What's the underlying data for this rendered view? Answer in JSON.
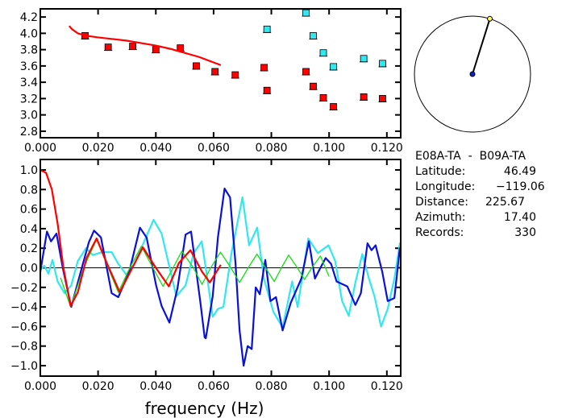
{
  "colors": {
    "blue": "#0a10dc",
    "cyan": "#30e8f0",
    "red": "#ff0000",
    "green": "#10e010",
    "station": "#ffff40"
  },
  "chart_data": [
    {
      "type": "scatter",
      "title": "",
      "xlabel": "",
      "ylabel": "",
      "xlim": [
        0,
        0.1248
      ],
      "ylim": [
        2.72,
        4.3
      ],
      "xticks": [
        "0.000",
        "0.020",
        "0.040",
        "0.060",
        "0.080",
        "0.100",
        "0.120"
      ],
      "yticks": [
        "2.8",
        "3.0",
        "3.2",
        "3.4",
        "3.6",
        "3.8",
        "4.0",
        "4.2"
      ],
      "series": [
        {
          "name": "red-points",
          "color": "red",
          "points": [
            [
              0.0155,
              3.97
            ],
            [
              0.0235,
              3.83
            ],
            [
              0.032,
              3.84
            ],
            [
              0.04,
              3.8
            ],
            [
              0.0485,
              3.82
            ],
            [
              0.054,
              3.6
            ],
            [
              0.0605,
              3.53
            ],
            [
              0.0675,
              3.49
            ],
            [
              0.0775,
              3.58
            ],
            [
              0.0785,
              3.3
            ],
            [
              0.092,
              3.53
            ],
            [
              0.0945,
              3.35
            ],
            [
              0.098,
              3.21
            ],
            [
              0.1015,
              3.1
            ],
            [
              0.112,
              3.22
            ],
            [
              0.1185,
              3.2
            ]
          ]
        },
        {
          "name": "cyan-points",
          "color": "cyan",
          "points": [
            [
              0.0785,
              4.05
            ],
            [
              0.092,
              4.25
            ],
            [
              0.0945,
              3.97
            ],
            [
              0.098,
              3.76
            ],
            [
              0.1015,
              3.59
            ],
            [
              0.112,
              3.69
            ],
            [
              0.1185,
              3.63
            ]
          ]
        },
        {
          "name": "red-curve",
          "color": "red",
          "line": true,
          "points": [
            [
              0.01,
              4.09
            ],
            [
              0.011,
              4.05
            ],
            [
              0.013,
              4.0
            ],
            [
              0.016,
              3.97
            ],
            [
              0.02,
              3.95
            ],
            [
              0.025,
              3.93
            ],
            [
              0.03,
              3.91
            ],
            [
              0.035,
              3.88
            ],
            [
              0.04,
              3.85
            ],
            [
              0.045,
              3.81
            ],
            [
              0.05,
              3.76
            ],
            [
              0.055,
              3.71
            ],
            [
              0.0625,
              3.61
            ]
          ]
        }
      ]
    },
    {
      "type": "line",
      "title": "",
      "xlabel": "frequency (Hz)",
      "ylabel": "",
      "xlim": [
        0,
        0.1248
      ],
      "ylim": [
        -1.107,
        1.107
      ],
      "xticks": [
        "0.000",
        "0.020",
        "0.040",
        "0.060",
        "0.080",
        "0.100",
        "0.120"
      ],
      "yticks": [
        "-1.0",
        "-0.8",
        "-0.6",
        "-0.4",
        "-0.2",
        "0.0",
        "0.2",
        "0.4",
        "0.6",
        "0.8",
        "1.0"
      ],
      "series": [
        {
          "name": "cyan",
          "color": "cyan",
          "points": [
            [
              0,
              -0.02
            ],
            [
              0.0014,
              0.02
            ],
            [
              0.0028,
              -0.06
            ],
            [
              0.0042,
              0.08
            ],
            [
              0.006,
              -0.14
            ],
            [
              0.0084,
              -0.26
            ],
            [
              0.0107,
              -0.18
            ],
            [
              0.013,
              0.07
            ],
            [
              0.0158,
              0.2
            ],
            [
              0.0182,
              0.13
            ],
            [
              0.0214,
              0.16
            ],
            [
              0.0247,
              0.16
            ],
            [
              0.027,
              0.04
            ],
            [
              0.0298,
              -0.07
            ],
            [
              0.0326,
              0.04
            ],
            [
              0.0354,
              0.23
            ],
            [
              0.0392,
              0.49
            ],
            [
              0.042,
              0.35
            ],
            [
              0.0447,
              0.01
            ],
            [
              0.0471,
              -0.29
            ],
            [
              0.0503,
              -0.18
            ],
            [
              0.0531,
              0.15
            ],
            [
              0.0559,
              0.27
            ],
            [
              0.0578,
              -0.1
            ],
            [
              0.0597,
              -0.5
            ],
            [
              0.0615,
              -0.42
            ],
            [
              0.0634,
              -0.4
            ],
            [
              0.0662,
              0.15
            ],
            [
              0.07,
              0.72
            ],
            [
              0.0723,
              0.23
            ],
            [
              0.0751,
              0.41
            ],
            [
              0.0774,
              -0.11
            ],
            [
              0.0807,
              -0.45
            ],
            [
              0.0839,
              -0.61
            ],
            [
              0.0872,
              -0.14
            ],
            [
              0.0891,
              -0.4
            ],
            [
              0.0928,
              0.3
            ],
            [
              0.0961,
              0.15
            ],
            [
              0.0998,
              0.23
            ],
            [
              0.1021,
              0.07
            ],
            [
              0.1045,
              -0.34
            ],
            [
              0.1068,
              -0.49
            ],
            [
              0.1091,
              -0.15
            ],
            [
              0.1115,
              0.14
            ],
            [
              0.1138,
              -0.11
            ],
            [
              0.1157,
              -0.29
            ],
            [
              0.118,
              -0.6
            ],
            [
              0.1203,
              -0.42
            ],
            [
              0.1226,
              -0.11
            ],
            [
              0.1245,
              0.25
            ],
            [
              0.1248,
              0.15
            ]
          ]
        },
        {
          "name": "blue",
          "color": "blue",
          "points": [
            [
              0,
              -0.04
            ],
            [
              0.0023,
              0.37
            ],
            [
              0.0037,
              0.27
            ],
            [
              0.0056,
              0.35
            ],
            [
              0.0079,
              -0.02
            ],
            [
              0.0107,
              -0.4
            ],
            [
              0.014,
              -0.04
            ],
            [
              0.0168,
              0.26
            ],
            [
              0.0186,
              0.38
            ],
            [
              0.021,
              0.31
            ],
            [
              0.0247,
              -0.26
            ],
            [
              0.027,
              -0.3
            ],
            [
              0.0308,
              -0.04
            ],
            [
              0.0345,
              0.41
            ],
            [
              0.0368,
              0.31
            ],
            [
              0.0401,
              -0.18
            ],
            [
              0.042,
              -0.39
            ],
            [
              0.0447,
              -0.56
            ],
            [
              0.0475,
              -0.21
            ],
            [
              0.0503,
              0.34
            ],
            [
              0.0522,
              0.37
            ],
            [
              0.0555,
              -0.37
            ],
            [
              0.0569,
              -0.71
            ],
            [
              0.0573,
              -0.72
            ],
            [
              0.0597,
              -0.29
            ],
            [
              0.0615,
              0.31
            ],
            [
              0.0638,
              0.81
            ],
            [
              0.0657,
              0.72
            ],
            [
              0.0676,
              0.04
            ],
            [
              0.069,
              -0.64
            ],
            [
              0.0704,
              -1.0
            ],
            [
              0.0718,
              -0.8
            ],
            [
              0.0732,
              -0.83
            ],
            [
              0.0746,
              -0.2
            ],
            [
              0.076,
              -0.27
            ],
            [
              0.0779,
              0.08
            ],
            [
              0.0797,
              -0.34
            ],
            [
              0.0816,
              -0.3
            ],
            [
              0.0839,
              -0.64
            ],
            [
              0.0867,
              -0.36
            ],
            [
              0.0904,
              -0.11
            ],
            [
              0.093,
              0.27
            ],
            [
              0.0951,
              -0.11
            ],
            [
              0.097,
              0.0
            ],
            [
              0.0988,
              0.1
            ],
            [
              0.1007,
              0.04
            ],
            [
              0.1026,
              -0.14
            ],
            [
              0.1063,
              -0.19
            ],
            [
              0.1091,
              -0.38
            ],
            [
              0.111,
              -0.26
            ],
            [
              0.1133,
              0.25
            ],
            [
              0.1147,
              0.18
            ],
            [
              0.1161,
              0.23
            ],
            [
              0.1184,
              -0.04
            ],
            [
              0.1203,
              -0.34
            ],
            [
              0.1226,
              -0.31
            ],
            [
              0.1245,
              0.2
            ],
            [
              0.1248,
              0.11
            ]
          ]
        },
        {
          "name": "green",
          "color": "green",
          "points": [
            [
              0.007,
              -0.1
            ],
            [
              0.0105,
              -0.4
            ],
            [
              0.015,
              0.0
            ],
            [
              0.0195,
              0.29
            ],
            [
              0.0235,
              0.0
            ],
            [
              0.027,
              -0.25
            ],
            [
              0.031,
              0.0
            ],
            [
              0.035,
              0.22
            ],
            [
              0.039,
              0.0
            ],
            [
              0.0425,
              -0.19
            ],
            [
              0.046,
              0.0
            ],
            [
              0.049,
              0.17
            ],
            [
              0.053,
              0.0
            ],
            [
              0.056,
              -0.17
            ],
            [
              0.059,
              0.0
            ],
            [
              0.0624,
              0.16
            ],
            [
              0.066,
              0.0
            ],
            [
              0.069,
              -0.15
            ],
            [
              0.072,
              0.0
            ],
            [
              0.075,
              0.14
            ],
            [
              0.078,
              0.0
            ],
            [
              0.081,
              -0.14
            ],
            [
              0.0835,
              0.0
            ],
            [
              0.086,
              0.13
            ],
            [
              0.089,
              0.0
            ],
            [
              0.0915,
              -0.12
            ],
            [
              0.094,
              0.0
            ],
            [
              0.097,
              0.12
            ],
            [
              0.1,
              -0.09
            ]
          ]
        },
        {
          "name": "red",
          "color": "red",
          "points": [
            [
              0,
              1.0
            ],
            [
              0.002,
              0.97
            ],
            [
              0.004,
              0.8
            ],
            [
              0.006,
              0.45
            ],
            [
              0.008,
              0.0
            ],
            [
              0.0105,
              -0.39
            ],
            [
              0.013,
              -0.25
            ],
            [
              0.016,
              0.1
            ],
            [
              0.0195,
              0.3
            ],
            [
              0.023,
              0.05
            ],
            [
              0.0275,
              -0.25
            ],
            [
              0.031,
              -0.05
            ],
            [
              0.0355,
              0.21
            ],
            [
              0.04,
              0.0
            ],
            [
              0.0445,
              -0.19
            ],
            [
              0.048,
              0.05
            ],
            [
              0.052,
              0.18
            ],
            [
              0.056,
              -0.04
            ],
            [
              0.0587,
              -0.15
            ],
            [
              0.0625,
              0.03
            ]
          ]
        }
      ]
    }
  ],
  "map": {
    "azimuth_deg": 17.4
  },
  "info": {
    "pair": "E08A-TA  -  B09A-TA",
    "rows": [
      {
        "label": "Latitude:",
        "value": "46.49"
      },
      {
        "label": "Longitude:",
        "value": "−119.06"
      },
      {
        "label": "Distance:",
        "value": "225.67"
      },
      {
        "label": "Azimuth:",
        "value": "17.40"
      },
      {
        "label": "Records:",
        "value": "330"
      }
    ]
  }
}
